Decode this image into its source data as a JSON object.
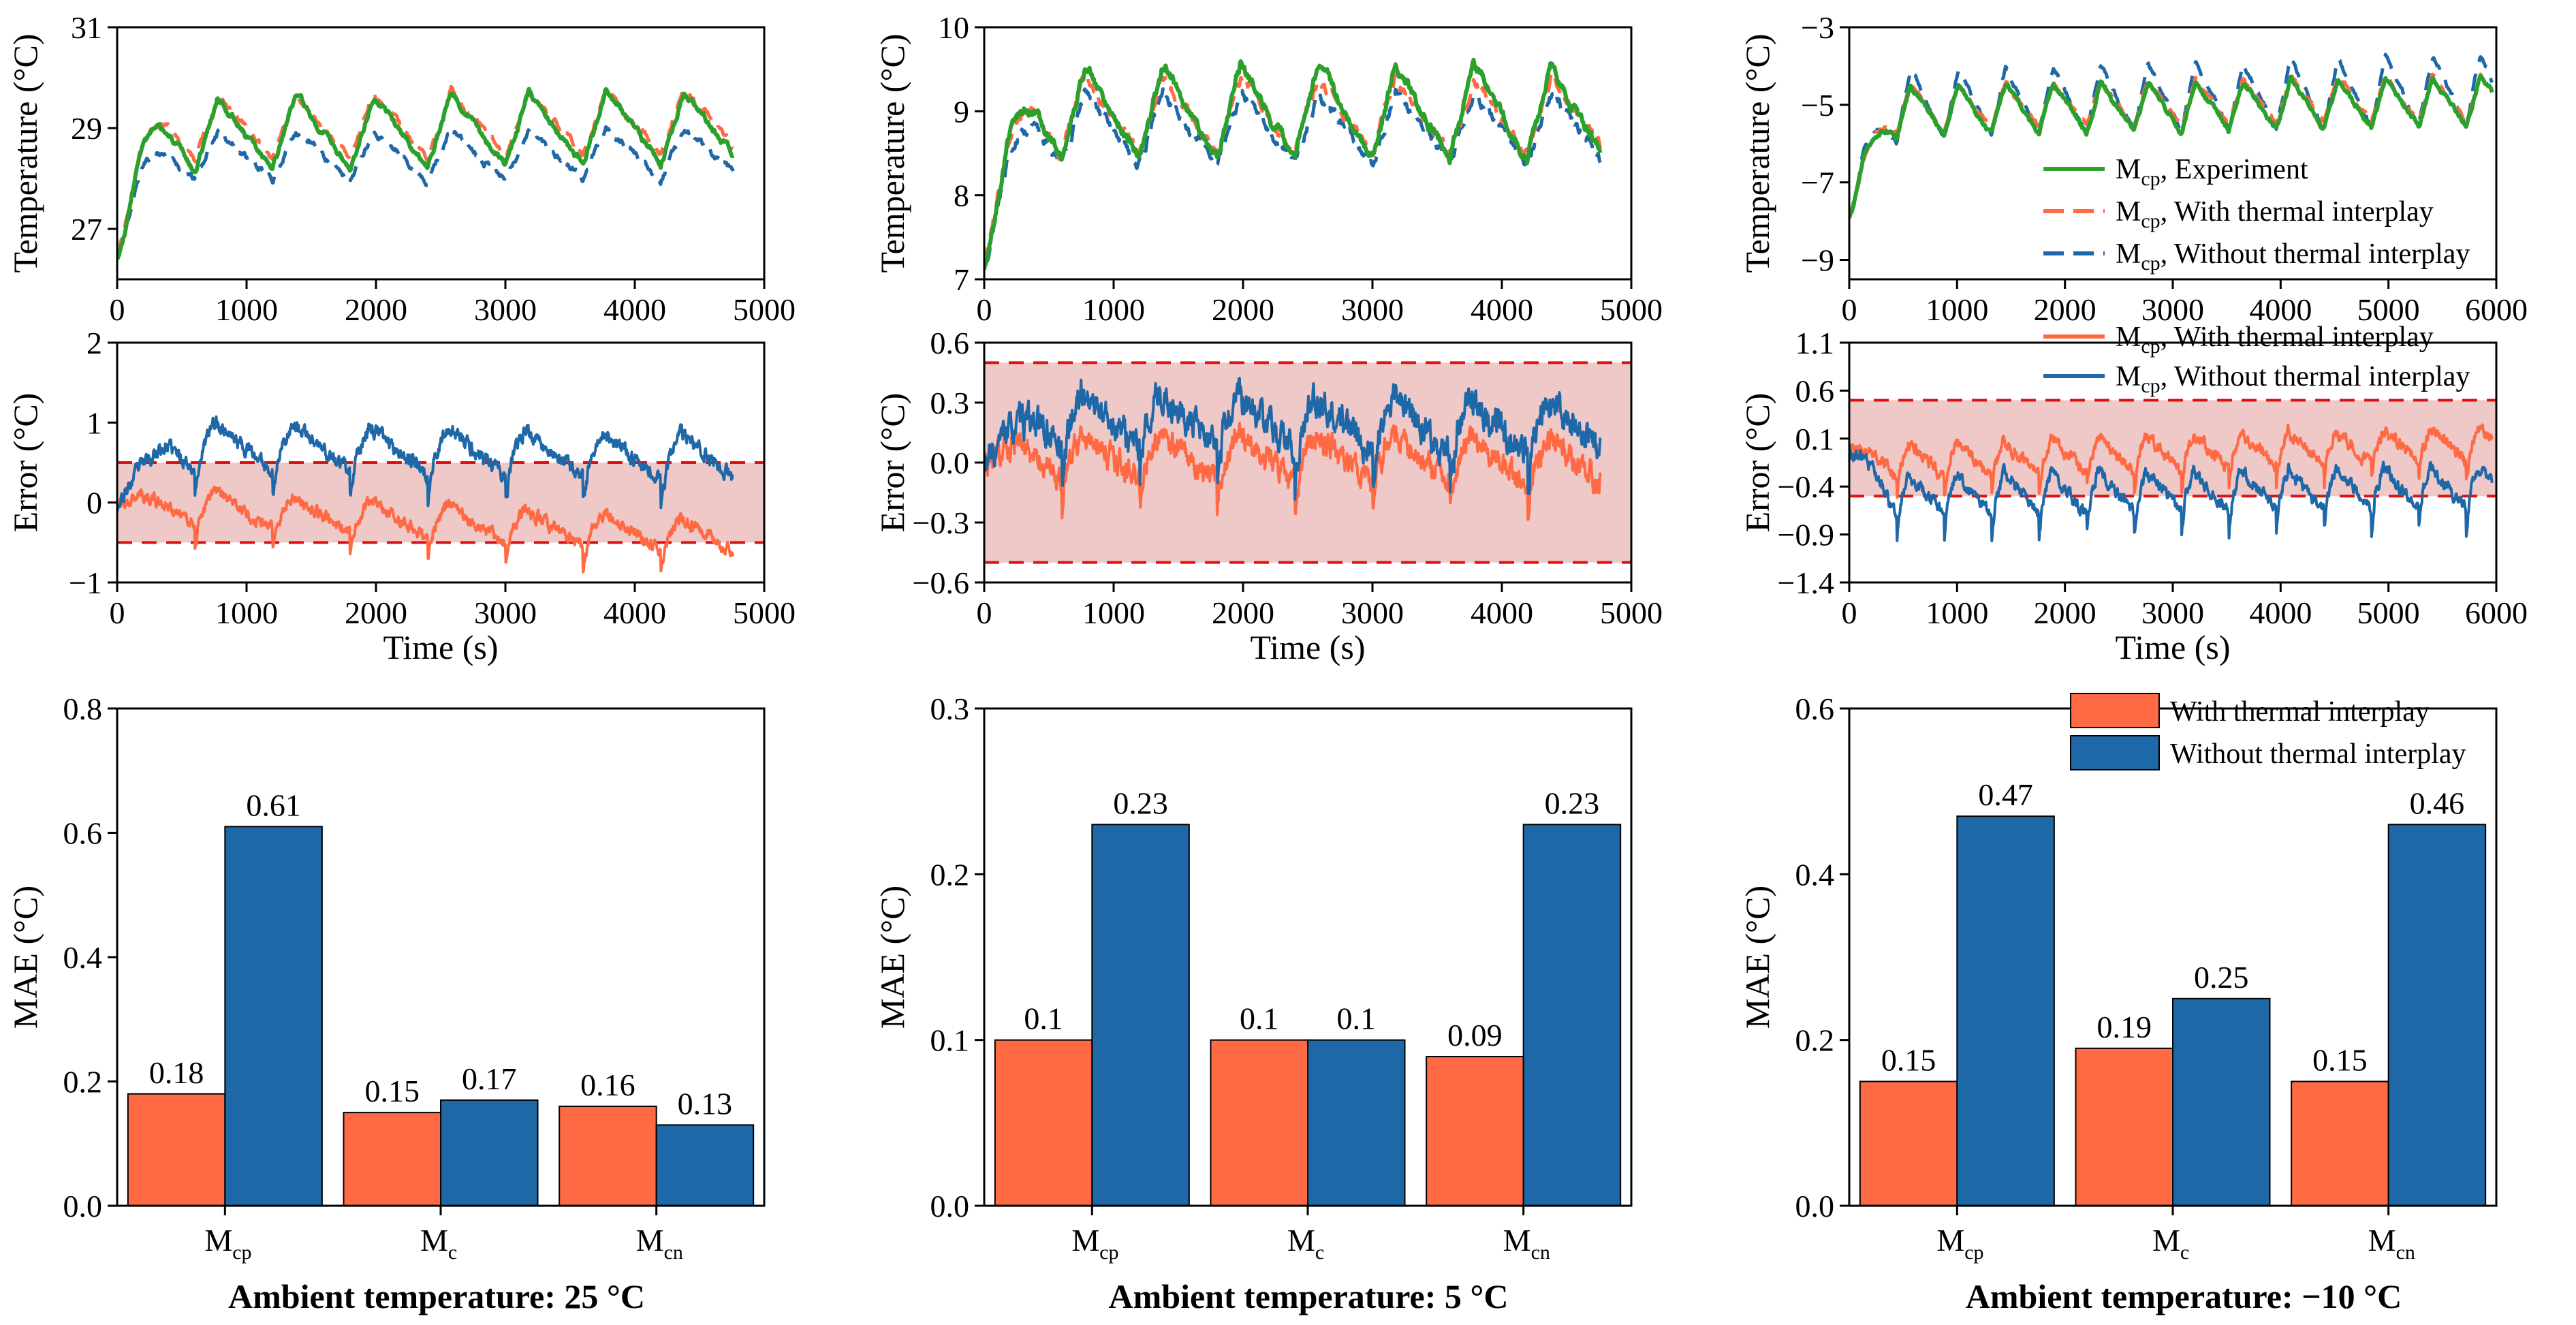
{
  "figure": {
    "captions": [
      "Ambient temperature: 25 °C",
      "Ambient temperature: 5 °C",
      "Ambient temperature: −10 °C"
    ],
    "caption_color": "#2e8b1f"
  },
  "colors": {
    "experiment": "#2ca02c",
    "with_interplay": "#ff6a45",
    "without_interplay": "#1f68a8",
    "band_fill": "#efc8c8",
    "band_line": "#e01010"
  },
  "chart_data": {
    "temperature": [
      {
        "type": "line",
        "ambient": "25 °C",
        "xlabel": "",
        "ylabel": "Temperature (°C)",
        "xlim": [
          0,
          5000
        ],
        "ylim": [
          26,
          31
        ],
        "xticks": [
          0,
          1000,
          2000,
          3000,
          4000,
          5000
        ],
        "yticks": [
          27,
          29,
          31
        ],
        "x_end": 4760,
        "period": 600,
        "warmup": 420,
        "series": [
          {
            "key": "exp",
            "start": 26.4,
            "base": 28.85,
            "amp": 0.75,
            "trend": 0.2,
            "seed": 3
          },
          {
            "key": "with",
            "start": 26.5,
            "base": 28.95,
            "amp": 0.65,
            "trend": 0.2,
            "seed": 7
          },
          {
            "key": "without",
            "start": 26.5,
            "base": 28.45,
            "amp": 0.5,
            "trend": 0.05,
            "seed": 11
          }
        ]
      },
      {
        "type": "line",
        "ambient": "5 °C",
        "xlabel": "",
        "ylabel": "Temperature (°C)",
        "xlim": [
          0,
          5000
        ],
        "ylim": [
          7,
          10
        ],
        "xticks": [
          0,
          1000,
          2000,
          3000,
          4000,
          5000
        ],
        "yticks": [
          7,
          8,
          9,
          10
        ],
        "x_end": 4760,
        "period": 600,
        "warmup": 450,
        "series": [
          {
            "key": "exp",
            "start": 7.1,
            "base": 9.0,
            "amp": 0.55,
            "trend": 0.0,
            "seed": 5
          },
          {
            "key": "with",
            "start": 7.2,
            "base": 8.95,
            "amp": 0.45,
            "trend": 0.0,
            "seed": 9
          },
          {
            "key": "without",
            "start": 7.2,
            "base": 8.8,
            "amp": 0.42,
            "trend": 0.0,
            "seed": 13
          }
        ]
      },
      {
        "type": "line",
        "ambient": "−10 °C",
        "xlabel": "",
        "ylabel": "Temperature (°C)",
        "xlim": [
          0,
          6000
        ],
        "ylim": [
          -9.5,
          -3
        ],
        "xticks": [
          0,
          1000,
          2000,
          3000,
          4000,
          5000,
          6000
        ],
        "yticks": [
          -9,
          -7,
          -5,
          -3
        ],
        "x_end": 5960,
        "period": 440,
        "warmup": 520,
        "series": [
          {
            "key": "exp",
            "start": -7.9,
            "base": -5.2,
            "amp": 0.65,
            "trend": 0.3,
            "seed": 4
          },
          {
            "key": "with",
            "start": -7.9,
            "base": -5.1,
            "amp": 0.6,
            "trend": 0.3,
            "seed": 8
          },
          {
            "key": "without",
            "start": -7.9,
            "base": -5.0,
            "amp": 0.9,
            "trend": 0.4,
            "seed": 12
          }
        ],
        "legend": {
          "placement": "lower-right",
          "entries": [
            {
              "key": "exp",
              "label": "M",
              "sub": "cp",
              "suffix": ", Experiment"
            },
            {
              "key": "with",
              "label": "M",
              "sub": "cp",
              "suffix": ", With thermal interplay"
            },
            {
              "key": "without",
              "label": "M",
              "sub": "cp",
              "suffix": ", Without thermal interplay"
            }
          ]
        }
      }
    ],
    "error": [
      {
        "type": "line",
        "ambient": "25 °C",
        "xlabel": "Time (s)",
        "ylabel": "Error (°C)",
        "xlim": [
          0,
          5000
        ],
        "ylim": [
          -1,
          2
        ],
        "xticks": [
          0,
          1000,
          2000,
          3000,
          4000,
          5000
        ],
        "yticks": [
          -1,
          0,
          1,
          2
        ],
        "band": [
          -0.5,
          0.5
        ],
        "x_end": 4760,
        "period": 600,
        "series": [
          {
            "key": "with",
            "mean": 0.0,
            "trend": -0.45,
            "amp": 0.22,
            "noise": 0.06,
            "seed": 21
          },
          {
            "key": "without",
            "mean": 0.75,
            "trend": -0.2,
            "amp": 0.3,
            "noise": 0.07,
            "seed": 23
          }
        ]
      },
      {
        "type": "line",
        "ambient": "5 °C",
        "xlabel": "Time (s)",
        "ylabel": "Error (°C)",
        "xlim": [
          0,
          5000
        ],
        "ylim": [
          -0.6,
          0.6
        ],
        "xticks": [
          0,
          1000,
          2000,
          3000,
          4000,
          5000
        ],
        "yticks": [
          -0.6,
          -0.3,
          0.0,
          0.3,
          0.6
        ],
        "band": [
          -0.5,
          0.5
        ],
        "x_end": 4760,
        "period": 600,
        "series": [
          {
            "key": "with",
            "mean": 0.05,
            "trend": -0.05,
            "amp": 0.12,
            "noise": 0.05,
            "seed": 31
          },
          {
            "key": "without",
            "mean": 0.22,
            "trend": -0.05,
            "amp": 0.14,
            "noise": 0.06,
            "seed": 33
          }
        ]
      },
      {
        "type": "line",
        "ambient": "−10 °C",
        "xlabel": "Time (s)",
        "ylabel": "Error (°C)",
        "xlim": [
          0,
          6000
        ],
        "ylim": [
          -1.4,
          1.1
        ],
        "xticks": [
          0,
          1000,
          2000,
          3000,
          4000,
          5000,
          6000
        ],
        "yticks": [
          -1.4,
          -0.9,
          -0.4,
          0.1,
          0.6,
          1.1
        ],
        "band": [
          -0.5,
          0.5
        ],
        "x_end": 5960,
        "period": 440,
        "series": [
          {
            "key": "with",
            "mean": -0.15,
            "trend": 0.2,
            "amp": 0.18,
            "noise": 0.05,
            "seed": 41
          },
          {
            "key": "without",
            "mean": -0.5,
            "trend": 0.1,
            "amp": 0.22,
            "noise": 0.05,
            "seed": 43
          }
        ],
        "legend": {
          "placement": "top-right",
          "entries": [
            {
              "key": "with",
              "label": "M",
              "sub": "cp",
              "suffix": ", With thermal interplay"
            },
            {
              "key": "without",
              "label": "M",
              "sub": "cp",
              "suffix": ", Without thermal interplay"
            }
          ]
        }
      }
    ],
    "mae": [
      {
        "type": "bar",
        "ambient": "25 °C",
        "ylabel": "MAE (°C)",
        "ylim": [
          0,
          0.8
        ],
        "yticks": [
          0.0,
          0.2,
          0.4,
          0.6,
          0.8
        ],
        "categories": [
          {
            "label": "M",
            "sub": "cp"
          },
          {
            "label": "M",
            "sub": "c"
          },
          {
            "label": "M",
            "sub": "cn"
          }
        ],
        "series": [
          {
            "key": "with",
            "name": "With thermal interplay",
            "values": [
              0.18,
              0.15,
              0.16
            ],
            "labels": [
              "0.18",
              "0.15",
              "0.16"
            ]
          },
          {
            "key": "without",
            "name": "Without thermal interplay",
            "values": [
              0.61,
              0.17,
              0.13
            ],
            "labels": [
              "0.61",
              "0.17",
              "0.13"
            ]
          }
        ]
      },
      {
        "type": "bar",
        "ambient": "5 °C",
        "ylabel": "MAE (°C)",
        "ylim": [
          0,
          0.3
        ],
        "yticks": [
          0.0,
          0.1,
          0.2,
          0.3
        ],
        "categories": [
          {
            "label": "M",
            "sub": "cp"
          },
          {
            "label": "M",
            "sub": "c"
          },
          {
            "label": "M",
            "sub": "cn"
          }
        ],
        "series": [
          {
            "key": "with",
            "name": "With thermal interplay",
            "values": [
              0.1,
              0.1,
              0.09
            ],
            "labels": [
              "0.1",
              "0.1",
              "0.09"
            ]
          },
          {
            "key": "without",
            "name": "Without thermal interplay",
            "values": [
              0.23,
              0.1,
              0.23
            ],
            "labels": [
              "0.23",
              "0.1",
              "0.23"
            ]
          }
        ]
      },
      {
        "type": "bar",
        "ambient": "−10 °C",
        "ylabel": "MAE (°C)",
        "ylim": [
          0,
          0.6
        ],
        "yticks": [
          0.0,
          0.2,
          0.4,
          0.6
        ],
        "categories": [
          {
            "label": "M",
            "sub": "cp"
          },
          {
            "label": "M",
            "sub": "c"
          },
          {
            "label": "M",
            "sub": "cn"
          }
        ],
        "series": [
          {
            "key": "with",
            "name": "With thermal interplay",
            "values": [
              0.15,
              0.19,
              0.15
            ],
            "labels": [
              "0.15",
              "0.19",
              "0.15"
            ]
          },
          {
            "key": "without",
            "name": "Without thermal interplay",
            "values": [
              0.47,
              0.25,
              0.46
            ],
            "labels": [
              "0.47",
              "0.25",
              "0.46"
            ]
          }
        ],
        "legend": {
          "placement": "top-right",
          "entries": [
            {
              "key": "with",
              "label": "With thermal interplay"
            },
            {
              "key": "without",
              "label": "Without thermal interplay"
            }
          ]
        }
      }
    ]
  }
}
